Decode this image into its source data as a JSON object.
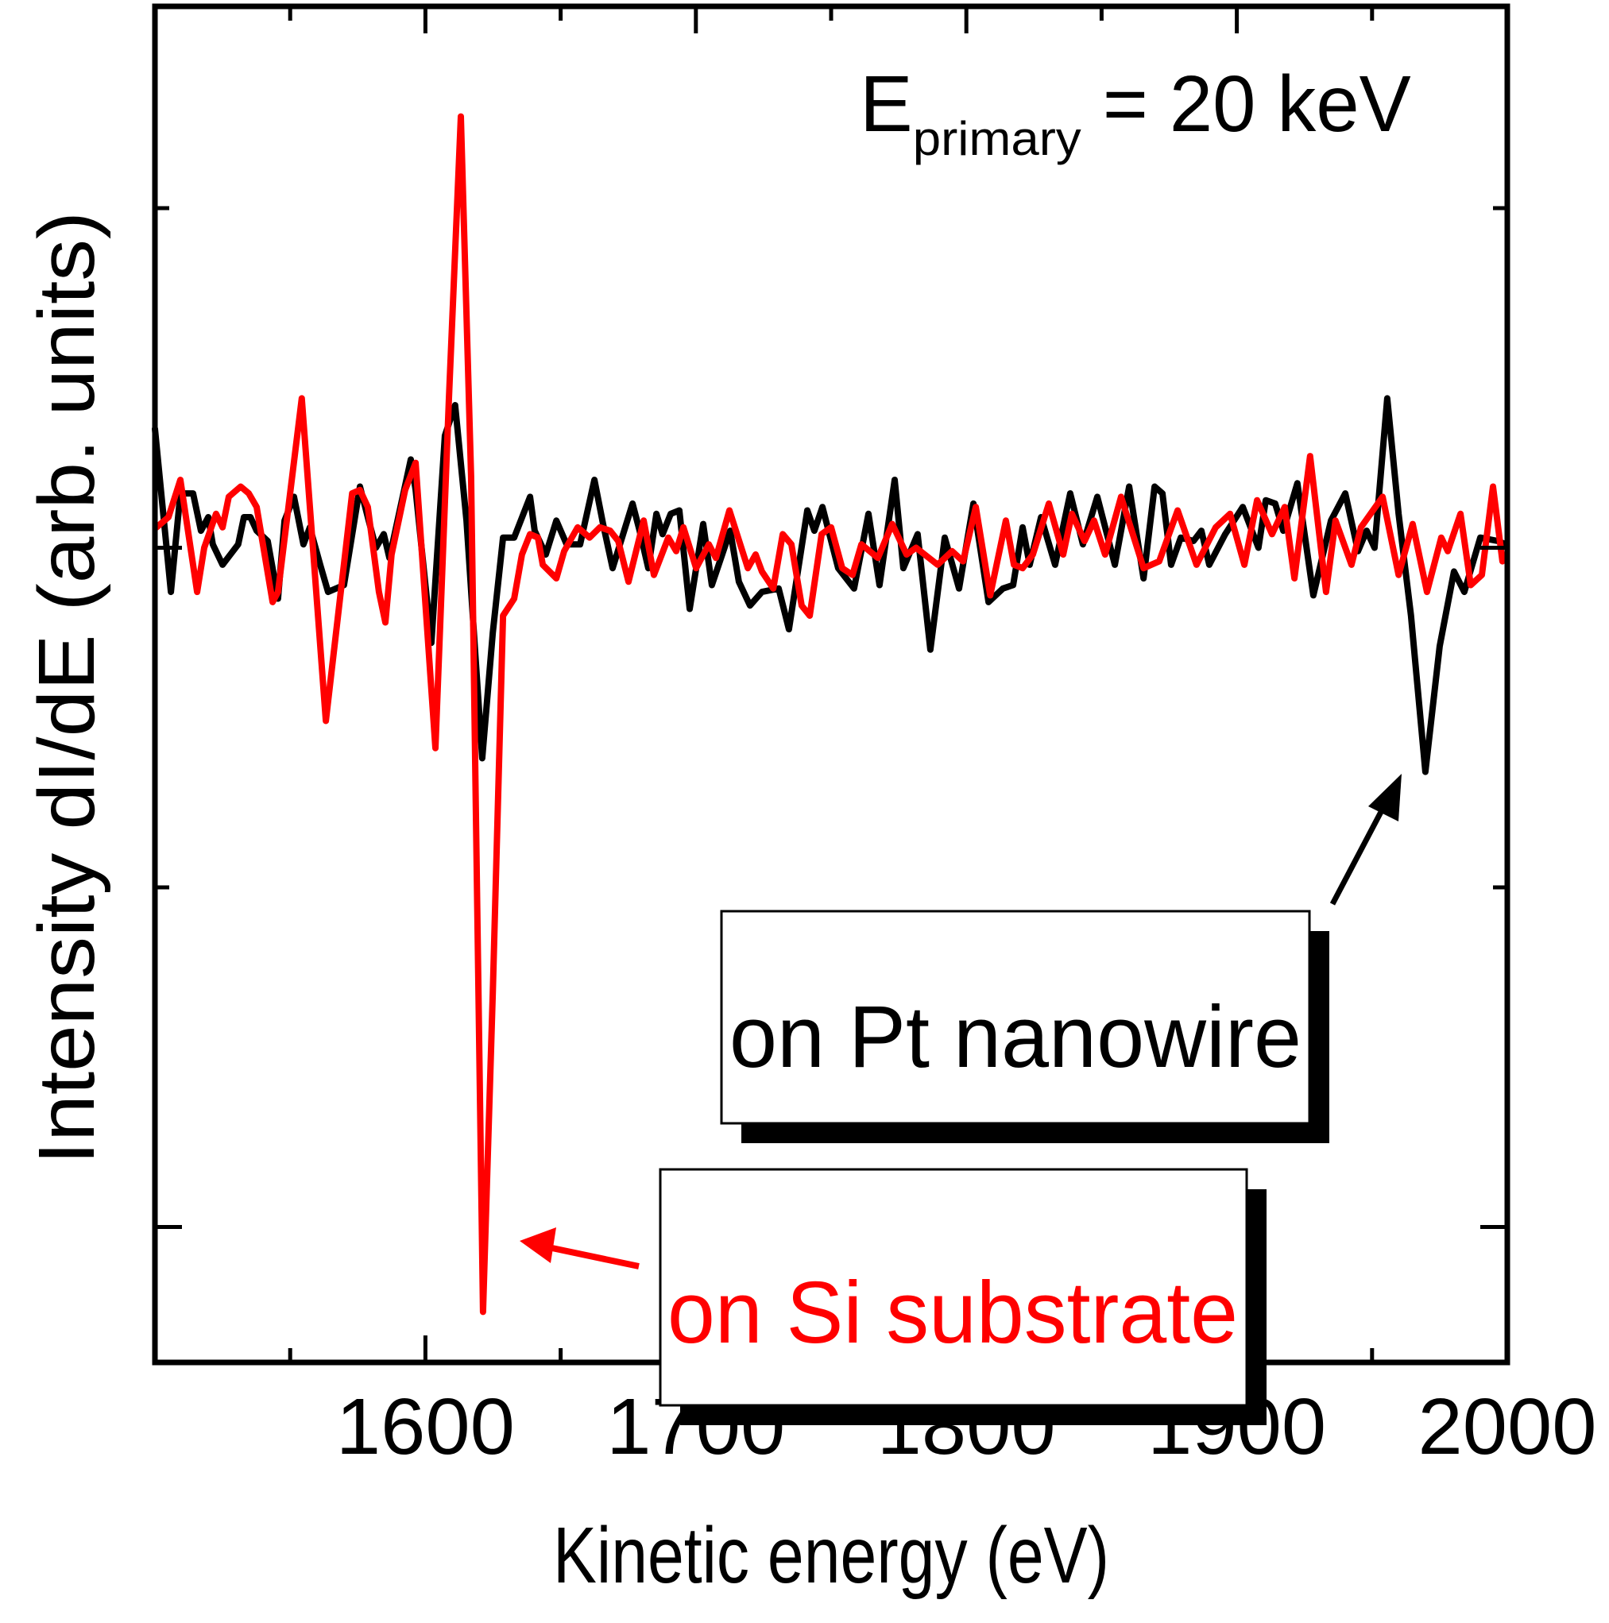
{
  "chart_data": {
    "type": "line",
    "title": "",
    "xlabel": "Kinetic energy (eV)",
    "ylabel": "Intensity dI/dE (arb. units)",
    "xlim": [
      1500,
      2000
    ],
    "ylim": [
      -1.4,
      2.6
    ],
    "grid": false,
    "x_ticks_major": [
      1600,
      1700,
      1800,
      1900,
      2000
    ],
    "x_tick_labels": [
      "1600",
      "1700",
      "1800",
      "1900",
      "2000"
    ],
    "x_ticks_minor": [
      1550,
      1650,
      1750,
      1850,
      1950
    ],
    "y_ticks_major": [
      -1,
      1
    ],
    "y_ticks_minor": [
      0,
      2
    ],
    "y_tick_labels": [],
    "annotation": {
      "main": "E",
      "subscript": "primary",
      "rest": " = 20 keV"
    },
    "series": [
      {
        "name": "on Pt nanowire",
        "color": "#000000",
        "label_color": "#000000",
        "points": [
          [
            1500.0,
            1.35
          ],
          [
            1505.9,
            0.87
          ],
          [
            1509.4,
            1.16
          ],
          [
            1514.1,
            1.16
          ],
          [
            1517.0,
            1.05
          ],
          [
            1519.7,
            1.09
          ],
          [
            1521.4,
            1.01
          ],
          [
            1525.0,
            0.95
          ],
          [
            1527.9,
            0.98
          ],
          [
            1530.8,
            1.01
          ],
          [
            1532.9,
            1.09
          ],
          [
            1535.3,
            1.09
          ],
          [
            1537.6,
            1.05
          ],
          [
            1541.7,
            1.02
          ],
          [
            1545.5,
            0.85
          ],
          [
            1547.9,
            1.08
          ],
          [
            1551.4,
            1.15
          ],
          [
            1554.9,
            1.01
          ],
          [
            1557.3,
            1.06
          ],
          [
            1561.1,
            0.95
          ],
          [
            1564.0,
            0.87
          ],
          [
            1569.9,
            0.89
          ],
          [
            1575.8,
            1.18
          ],
          [
            1578.7,
            1.09
          ],
          [
            1581.7,
            1.0
          ],
          [
            1584.6,
            1.04
          ],
          [
            1586.7,
            0.97
          ],
          [
            1594.6,
            1.26
          ],
          [
            1596.4,
            1.17
          ],
          [
            1602.2,
            0.72
          ],
          [
            1607.2,
            1.33
          ],
          [
            1611.0,
            1.42
          ],
          [
            1615.2,
            1.08
          ],
          [
            1621.0,
            0.38
          ],
          [
            1624.9,
            0.75
          ],
          [
            1628.7,
            1.03
          ],
          [
            1632.8,
            1.03
          ],
          [
            1638.7,
            1.15
          ],
          [
            1640.4,
            1.05
          ],
          [
            1644.5,
            0.98
          ],
          [
            1648.4,
            1.08
          ],
          [
            1652.2,
            1.01
          ],
          [
            1657.2,
            1.01
          ],
          [
            1662.5,
            1.2
          ],
          [
            1665.7,
            1.07
          ],
          [
            1669.2,
            0.94
          ],
          [
            1676.6,
            1.13
          ],
          [
            1679.2,
            1.05
          ],
          [
            1682.4,
            0.94
          ],
          [
            1685.4,
            1.1
          ],
          [
            1687.7,
            1.04
          ],
          [
            1690.7,
            1.1
          ],
          [
            1693.9,
            1.11
          ],
          [
            1697.7,
            0.82
          ],
          [
            1702.7,
            1.07
          ],
          [
            1705.9,
            0.89
          ],
          [
            1712.7,
            1.05
          ],
          [
            1715.9,
            0.9
          ],
          [
            1720.0,
            0.83
          ],
          [
            1724.4,
            0.87
          ],
          [
            1730.6,
            0.88
          ],
          [
            1734.4,
            0.76
          ],
          [
            1741.2,
            1.11
          ],
          [
            1743.8,
            1.05
          ],
          [
            1746.8,
            1.12
          ],
          [
            1752.6,
            0.94
          ],
          [
            1758.5,
            0.88
          ],
          [
            1763.8,
            1.1
          ],
          [
            1767.9,
            0.89
          ],
          [
            1773.5,
            1.2
          ],
          [
            1776.7,
            0.94
          ],
          [
            1782.0,
            1.04
          ],
          [
            1786.7,
            0.7
          ],
          [
            1792.0,
            1.03
          ],
          [
            1797.3,
            0.88
          ],
          [
            1802.6,
            1.13
          ],
          [
            1808.2,
            0.84
          ],
          [
            1813.5,
            0.88
          ],
          [
            1817.3,
            0.89
          ],
          [
            1820.8,
            1.06
          ],
          [
            1823.4,
            0.95
          ],
          [
            1827.6,
            1.09
          ],
          [
            1832.8,
            0.95
          ],
          [
            1838.4,
            1.16
          ],
          [
            1843.1,
            1.01
          ],
          [
            1848.4,
            1.15
          ],
          [
            1854.9,
            0.95
          ],
          [
            1860.2,
            1.18
          ],
          [
            1865.5,
            0.91
          ],
          [
            1869.6,
            1.18
          ],
          [
            1872.5,
            1.16
          ],
          [
            1875.7,
            0.95
          ],
          [
            1879.3,
            1.03
          ],
          [
            1884.0,
            1.02
          ],
          [
            1886.9,
            1.05
          ],
          [
            1889.8,
            0.95
          ],
          [
            1895.7,
            1.04
          ],
          [
            1902.2,
            1.12
          ],
          [
            1908.0,
            1.0
          ],
          [
            1910.7,
            1.14
          ],
          [
            1914.2,
            1.13
          ],
          [
            1917.2,
            1.05
          ],
          [
            1922.4,
            1.19
          ],
          [
            1928.3,
            0.86
          ],
          [
            1934.8,
            1.08
          ],
          [
            1940.1,
            1.16
          ],
          [
            1944.8,
            0.99
          ],
          [
            1948.0,
            1.05
          ],
          [
            1950.9,
            1.0
          ],
          [
            1955.6,
            1.44
          ],
          [
            1959.8,
            1.1
          ],
          [
            1964.4,
            0.8
          ],
          [
            1969.7,
            0.34
          ],
          [
            1975.0,
            0.71
          ],
          [
            1980.3,
            0.93
          ],
          [
            1984.1,
            0.87
          ],
          [
            1990.0,
            1.03
          ],
          [
            1996.5,
            1.02
          ],
          [
            1999.4,
            1.01
          ]
        ]
      },
      {
        "name": "on Si substrate",
        "color": "#ff0000",
        "label_color": "#ff0000",
        "points": [
          [
            1500.6,
            1.06
          ],
          [
            1505.0,
            1.09
          ],
          [
            1509.4,
            1.2
          ],
          [
            1515.6,
            0.87
          ],
          [
            1518.2,
            1.0
          ],
          [
            1522.6,
            1.1
          ],
          [
            1525.0,
            1.06
          ],
          [
            1527.3,
            1.15
          ],
          [
            1531.7,
            1.18
          ],
          [
            1534.7,
            1.16
          ],
          [
            1537.6,
            1.12
          ],
          [
            1543.5,
            0.84
          ],
          [
            1545.5,
            0.87
          ],
          [
            1554.3,
            1.44
          ],
          [
            1563.2,
            0.49
          ],
          [
            1572.9,
            1.16
          ],
          [
            1575.8,
            1.17
          ],
          [
            1578.7,
            1.12
          ],
          [
            1582.8,
            0.87
          ],
          [
            1585.2,
            0.78
          ],
          [
            1587.5,
            0.98
          ],
          [
            1592.5,
            1.17
          ],
          [
            1596.4,
            1.25
          ],
          [
            1603.7,
            0.41
          ],
          [
            1608.7,
            1.44
          ],
          [
            1613.1,
            2.27
          ],
          [
            1616.9,
            1.21
          ],
          [
            1621.3,
            -1.25
          ],
          [
            1624.9,
            -0.31
          ],
          [
            1628.7,
            0.8
          ],
          [
            1632.8,
            0.85
          ],
          [
            1635.7,
            0.98
          ],
          [
            1638.7,
            1.04
          ],
          [
            1641.6,
            1.03
          ],
          [
            1643.4,
            0.95
          ],
          [
            1648.4,
            0.91
          ],
          [
            1651.3,
            0.99
          ],
          [
            1656.3,
            1.06
          ],
          [
            1660.7,
            1.03
          ],
          [
            1664.5,
            1.06
          ],
          [
            1668.3,
            1.05
          ],
          [
            1671.3,
            1.02
          ],
          [
            1675.1,
            0.9
          ],
          [
            1680.7,
            1.08
          ],
          [
            1684.5,
            0.92
          ],
          [
            1689.8,
            1.03
          ],
          [
            1692.7,
            0.99
          ],
          [
            1695.4,
            1.06
          ],
          [
            1700.1,
            0.94
          ],
          [
            1704.8,
            1.01
          ],
          [
            1707.4,
            0.97
          ],
          [
            1712.4,
            1.11
          ],
          [
            1719.2,
            0.94
          ],
          [
            1722.1,
            0.98
          ],
          [
            1724.4,
            0.93
          ],
          [
            1728.6,
            0.88
          ],
          [
            1732.1,
            1.04
          ],
          [
            1735.3,
            1.01
          ],
          [
            1739.1,
            0.83
          ],
          [
            1742.1,
            0.8
          ],
          [
            1746.5,
            1.04
          ],
          [
            1750.0,
            1.06
          ],
          [
            1754.1,
            0.94
          ],
          [
            1757.9,
            0.92
          ],
          [
            1761.2,
            1.01
          ],
          [
            1767.3,
            0.97
          ],
          [
            1772.6,
            1.07
          ],
          [
            1777.9,
            0.98
          ],
          [
            1781.4,
            1.0
          ],
          [
            1789.4,
            0.95
          ],
          [
            1794.7,
            0.99
          ],
          [
            1798.8,
            0.96
          ],
          [
            1803.5,
            1.12
          ],
          [
            1808.8,
            0.86
          ],
          [
            1814.6,
            1.08
          ],
          [
            1817.6,
            0.95
          ],
          [
            1820.8,
            0.94
          ],
          [
            1824.6,
            0.98
          ],
          [
            1830.5,
            1.13
          ],
          [
            1835.8,
            0.98
          ],
          [
            1839.0,
            1.1
          ],
          [
            1843.7,
            1.02
          ],
          [
            1847.2,
            1.08
          ],
          [
            1851.3,
            0.98
          ],
          [
            1857.2,
            1.15
          ],
          [
            1865.5,
            0.94
          ],
          [
            1871.3,
            0.96
          ],
          [
            1878.1,
            1.11
          ],
          [
            1885.1,
            0.95
          ],
          [
            1892.2,
            1.06
          ],
          [
            1897.5,
            1.1
          ],
          [
            1902.8,
            0.95
          ],
          [
            1907.5,
            1.14
          ],
          [
            1913.0,
            1.04
          ],
          [
            1917.7,
            1.12
          ],
          [
            1921.3,
            0.91
          ],
          [
            1927.1,
            1.27
          ],
          [
            1933.0,
            0.87
          ],
          [
            1936.5,
            1.08
          ],
          [
            1942.4,
            0.95
          ],
          [
            1945.9,
            1.06
          ],
          [
            1953.9,
            1.15
          ],
          [
            1959.8,
            0.92
          ],
          [
            1965.0,
            1.07
          ],
          [
            1970.3,
            0.87
          ],
          [
            1975.6,
            1.03
          ],
          [
            1978.0,
            0.99
          ],
          [
            1982.7,
            1.1
          ],
          [
            1986.5,
            0.89
          ],
          [
            1990.6,
            0.92
          ],
          [
            1994.7,
            1.18
          ],
          [
            1998.2,
            0.96
          ]
        ]
      }
    ]
  }
}
